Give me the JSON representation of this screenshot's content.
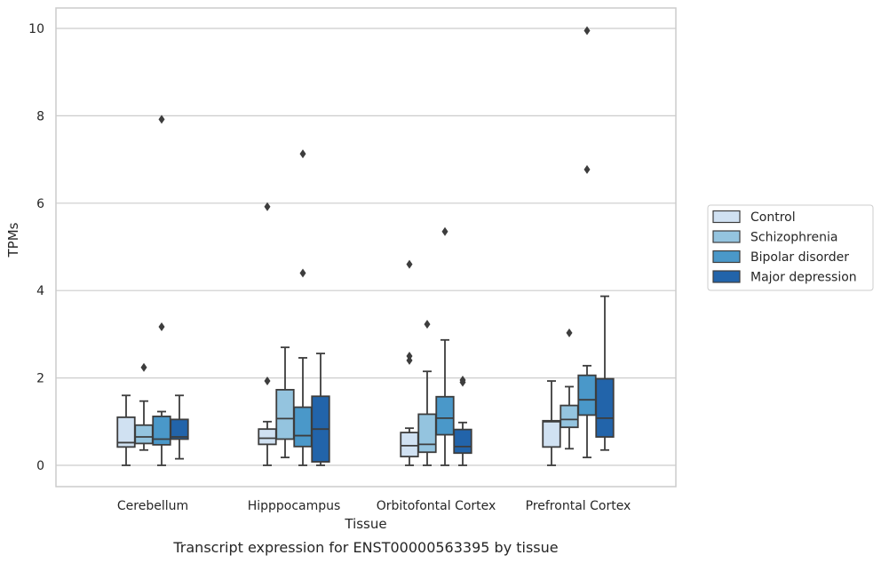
{
  "chart_data": {
    "type": "box",
    "title": "Transcript expression for ENST00000563395 by tissue",
    "xlabel": "Tissue",
    "ylabel": "TPMs",
    "ylim": [
      -0.45,
      10.45
    ],
    "yticks": [
      0,
      2,
      4,
      6,
      8,
      10
    ],
    "grid": "horizontal",
    "legend_position": "right",
    "categories": [
      "Cerebellum",
      "Hipppocampus",
      "Orbitofontal Cortex",
      "Prefrontal Cortex"
    ],
    "series": [
      {
        "name": "Control",
        "color": "#d0e1f2",
        "boxes": [
          {
            "whisker_low": 0.0,
            "q1": 0.42,
            "median": 0.52,
            "q3": 1.1,
            "whisker_high": 1.6,
            "outliers": []
          },
          {
            "whisker_low": 0.0,
            "q1": 0.48,
            "median": 0.62,
            "q3": 0.83,
            "whisker_high": 1.0,
            "outliers": [
              1.93,
              5.92
            ]
          },
          {
            "whisker_low": 0.0,
            "q1": 0.2,
            "median": 0.45,
            "q3": 0.75,
            "whisker_high": 0.85,
            "outliers": [
              2.4,
              2.5,
              4.6
            ]
          },
          {
            "whisker_low": 0.0,
            "q1": 0.42,
            "median": 1.0,
            "q3": 1.02,
            "whisker_high": 1.93,
            "outliers": []
          }
        ]
      },
      {
        "name": "Schizophrenia",
        "color": "#94c4df",
        "boxes": [
          {
            "whisker_low": 0.35,
            "q1": 0.5,
            "median": 0.65,
            "q3": 0.92,
            "whisker_high": 1.47,
            "outliers": [
              2.24
            ]
          },
          {
            "whisker_low": 0.18,
            "q1": 0.6,
            "median": 1.07,
            "q3": 1.73,
            "whisker_high": 2.7,
            "outliers": []
          },
          {
            "whisker_low": 0.0,
            "q1": 0.3,
            "median": 0.48,
            "q3": 1.17,
            "whisker_high": 2.15,
            "outliers": [
              3.23
            ]
          },
          {
            "whisker_low": 0.38,
            "q1": 0.87,
            "median": 1.05,
            "q3": 1.37,
            "whisker_high": 1.8,
            "outliers": [
              3.03
            ]
          }
        ]
      },
      {
        "name": "Bipolar disorder",
        "color": "#4a98c9",
        "boxes": [
          {
            "whisker_low": 0.0,
            "q1": 0.47,
            "median": 0.6,
            "q3": 1.12,
            "whisker_high": 1.23,
            "outliers": [
              3.17,
              7.92
            ]
          },
          {
            "whisker_low": 0.0,
            "q1": 0.43,
            "median": 0.68,
            "q3": 1.33,
            "whisker_high": 2.46,
            "outliers": [
              4.4,
              7.13
            ]
          },
          {
            "whisker_low": 0.0,
            "q1": 0.7,
            "median": 1.08,
            "q3": 1.57,
            "whisker_high": 2.87,
            "outliers": [
              5.35
            ]
          },
          {
            "whisker_low": 0.18,
            "q1": 1.15,
            "median": 1.5,
            "q3": 2.06,
            "whisker_high": 2.28,
            "outliers": [
              6.77,
              9.95
            ]
          }
        ]
      },
      {
        "name": "Major depression",
        "color": "#2264aa",
        "boxes": [
          {
            "whisker_low": 0.15,
            "q1": 0.6,
            "median": 0.65,
            "q3": 1.05,
            "whisker_high": 1.6,
            "outliers": []
          },
          {
            "whisker_low": 0.0,
            "q1": 0.08,
            "median": 0.83,
            "q3": 1.58,
            "whisker_high": 2.56,
            "outliers": []
          },
          {
            "whisker_low": 0.0,
            "q1": 0.28,
            "median": 0.43,
            "q3": 0.82,
            "whisker_high": 0.98,
            "outliers": [
              1.9,
              1.95
            ]
          },
          {
            "whisker_low": 0.35,
            "q1": 0.65,
            "median": 1.08,
            "q3": 1.98,
            "whisker_high": 3.87,
            "outliers": []
          }
        ]
      }
    ]
  }
}
